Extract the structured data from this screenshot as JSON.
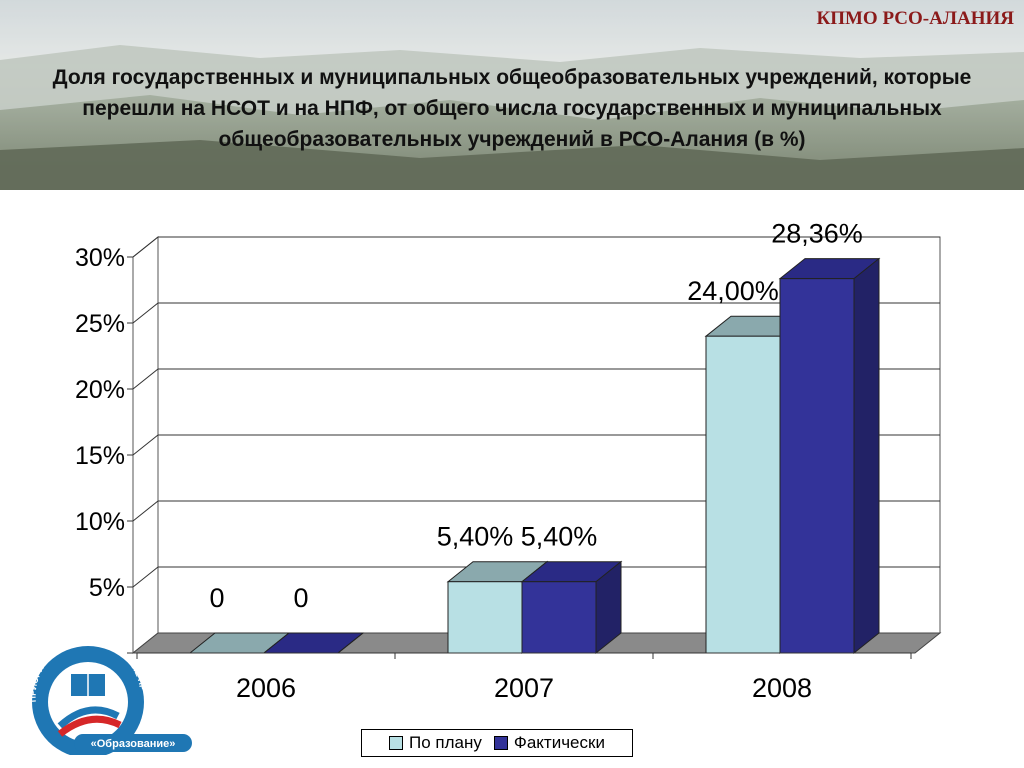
{
  "header": {
    "brand": "КПМО РСО-АЛАНИЯ",
    "title": "Доля государственных и муниципальных общеобразовательных учреждений, которые перешли на НСОТ и на НПФ, от общего числа государственных и муниципальных общеобразовательных учреждений в РСО-Алания (в %)"
  },
  "logo": {
    "text_arc": "ПРИОРИТЕТНЫЕ НАЦИОНАЛЬНЫЕ ПРОЕКТЫ",
    "text_bottom": "«Образование»"
  },
  "chart_data": {
    "type": "bar",
    "categories": [
      "2006",
      "2007",
      "2008"
    ],
    "series": [
      {
        "name": "По плану",
        "values": [
          0,
          5.4,
          24.0
        ],
        "labels": [
          "0",
          "5,40%",
          "24,00%"
        ],
        "color": "#b8e0e4"
      },
      {
        "name": "Фактически",
        "values": [
          0,
          5.4,
          28.36
        ],
        "labels": [
          "0",
          "5,40%",
          "28,36%"
        ],
        "color": "#333399"
      }
    ],
    "y_ticks": [
      "",
      "5%",
      "10%",
      "15%",
      "20%",
      "25%",
      "30%"
    ],
    "ylim": [
      0,
      30
    ],
    "grid": true,
    "style": "3d",
    "legend": "bottom"
  }
}
